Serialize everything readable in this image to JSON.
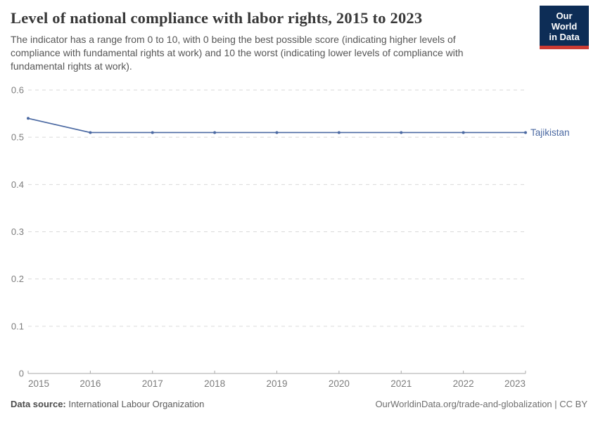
{
  "header": {
    "title": "Level of national compliance with labor rights, 2015 to 2023",
    "subtitle": "The indicator has a range from 0 to 10, with 0 being the best possible score (indicating higher levels of compliance with fundamental rights at work) and 10 the worst (indicating lower levels of compliance with fundamental rights at work).",
    "logo": {
      "line1": "Our World",
      "line2": "in Data",
      "bg_color": "#0d2d56",
      "accent_color": "#cc3b33"
    }
  },
  "chart_data": {
    "type": "line",
    "title": "Level of national compliance with labor rights, 2015 to 2023",
    "x": [
      2015,
      2016,
      2017,
      2018,
      2019,
      2020,
      2021,
      2022,
      2023
    ],
    "xtick_labels": [
      "2015",
      "2016",
      "2017",
      "2018",
      "2019",
      "2020",
      "2021",
      "2022",
      "2023"
    ],
    "series": [
      {
        "name": "Tajikistan",
        "values": [
          0.54,
          0.51,
          0.51,
          0.51,
          0.51,
          0.51,
          0.51,
          0.51,
          0.51
        ],
        "color": "#4b69a2"
      }
    ],
    "ylim": [
      0,
      0.6
    ],
    "yticks": [
      0,
      0.1,
      0.2,
      0.3,
      0.4,
      0.5,
      0.6
    ],
    "ytick_labels": [
      "0",
      "0.1",
      "0.2",
      "0.3",
      "0.4",
      "0.5",
      "0.6"
    ],
    "grid": "horizontal-dashed",
    "legend_position": "end-of-line-label"
  },
  "footer": {
    "data_source_label": "Data source:",
    "data_source_value": "International Labour Organization",
    "attribution": "OurWorldinData.org/trade-and-globalization | CC BY"
  },
  "colors": {
    "line": "#4b69a2",
    "grid": "#dadada",
    "axis": "#a8a8a8",
    "tick_text": "#7d7d7d",
    "title_text": "#383838",
    "subtitle_text": "#565656",
    "footer_text": "#5b5b5b",
    "logo_bg": "#0d2d56",
    "logo_accent": "#cc3b33"
  }
}
